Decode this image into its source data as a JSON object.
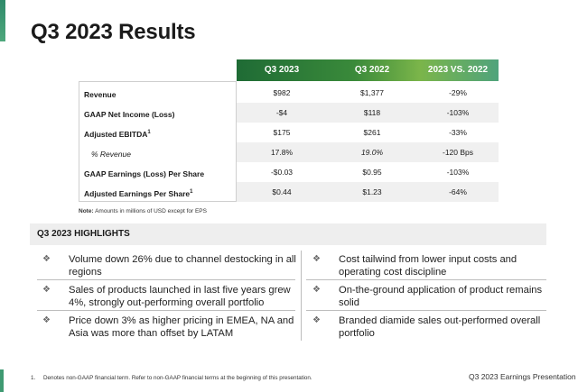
{
  "title": "Q3 2023 Results",
  "table": {
    "columns": [
      "Q3 2023",
      "Q3 2022",
      "2023 VS. 2022"
    ],
    "rows": [
      {
        "label": "Revenue",
        "sup": "",
        "italic": false,
        "values": [
          "$982",
          "$1,377",
          "-29%"
        ]
      },
      {
        "label": "GAAP Net Income (Loss)",
        "sup": "",
        "italic": false,
        "values": [
          "-$4",
          "$118",
          "-103%"
        ]
      },
      {
        "label": "Adjusted EBITDA",
        "sup": "1",
        "italic": false,
        "values": [
          "$175",
          "$261",
          "-33%"
        ]
      },
      {
        "label": "% Revenue",
        "sup": "",
        "italic": true,
        "values": [
          "17.8%",
          "19.0%",
          "-120 Bps"
        ]
      },
      {
        "label": "GAAP Earnings (Loss) Per Share",
        "sup": "",
        "italic": false,
        "values": [
          "-$0.03",
          "$0.95",
          "-103%"
        ]
      },
      {
        "label": "Adjusted Earnings Per Share",
        "sup": "1",
        "italic": false,
        "values": [
          "$0.44",
          "$1.23",
          "-64%"
        ]
      }
    ]
  },
  "note": {
    "bold": "Note:",
    "text": "Amounts in millions of USD except for EPS"
  },
  "highlights": {
    "title": "Q3 2023 HIGHLIGHTS",
    "bullet": "❖",
    "items": [
      {
        "line1": "Volume down 26% due to channel destocking in all",
        "line2": "regions"
      },
      {
        "line1": "Cost tailwind from lower input costs and",
        "line2": "operating cost discipline"
      },
      {
        "line1": "Sales of products launched in last five years grew",
        "line2": "4%, strongly out-performing overall portfolio"
      },
      {
        "line1": "On-the-ground application of product remains",
        "line2": "solid"
      },
      {
        "line1": "Price down 3% as higher pricing in EMEA, NA and",
        "line2": "Asia was more than offset by LATAM"
      },
      {
        "line1": "Branded diamide sales out-performed overall",
        "line2": "portfolio"
      }
    ]
  },
  "footnote": "1.     Denotes non-GAAP financial term. Refer to non-GAAP financial terms at the beginning of this presentation.",
  "footer_brand": "Q3 2023 Earnings Presentation",
  "footer_mark": "–"
}
